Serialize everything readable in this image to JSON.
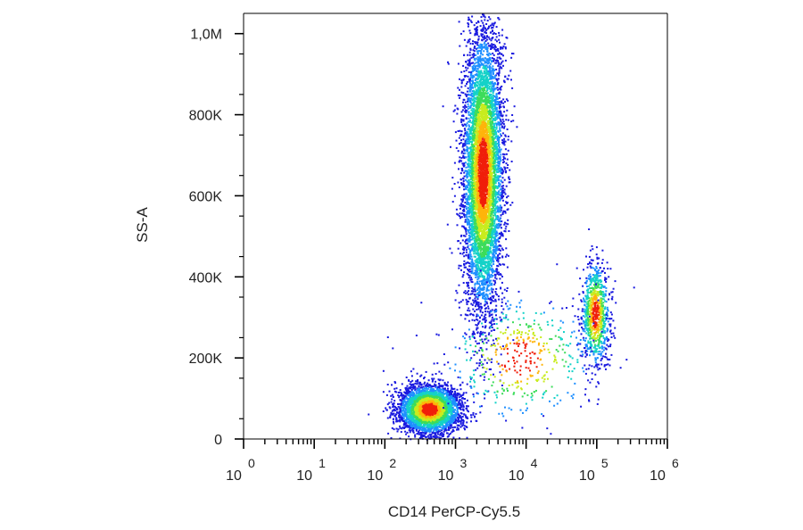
{
  "chart_data": {
    "type": "scatter",
    "subtype": "flow-cytometry-density-dot-plot",
    "xlabel": "CD14 PerCP-Cy5.5",
    "ylabel": "SS-A",
    "x_scale": "log",
    "xlim": [
      1,
      1000000
    ],
    "ylim": [
      0,
      1050000
    ],
    "x_tick_labels": [
      {
        "value": 1,
        "base": "10",
        "exp": "0"
      },
      {
        "value": 10,
        "base": "10",
        "exp": "1"
      },
      {
        "value": 100,
        "base": "10",
        "exp": "2"
      },
      {
        "value": 1000,
        "base": "10",
        "exp": "3"
      },
      {
        "value": 10000,
        "base": "10",
        "exp": "4"
      },
      {
        "value": 100000,
        "base": "10",
        "exp": "5"
      },
      {
        "value": 1000000,
        "base": "10",
        "exp": "6"
      }
    ],
    "y_tick_labels": [
      {
        "value": 0,
        "label": "0"
      },
      {
        "value": 200000,
        "label": "200K"
      },
      {
        "value": 400000,
        "label": "400K"
      },
      {
        "value": 600000,
        "label": "600K"
      },
      {
        "value": 800000,
        "label": "800K"
      },
      {
        "value": 1000000,
        "label": "1,0M"
      }
    ],
    "grid": false,
    "legend": "none",
    "color_scale": [
      "#1a1adf",
      "#1e8fff",
      "#14d2c8",
      "#3cdc5a",
      "#c8ec1e",
      "#ffb40a",
      "#f01e0a"
    ],
    "populations": [
      {
        "log10_x_center": 2.62,
        "y_center": 75000,
        "log10_x_sd": 0.22,
        "y_sd": 30000,
        "count": 3600
      },
      {
        "log10_x_center": 3.38,
        "y_center": 660000,
        "log10_x_sd": 0.14,
        "y_sd": 175000,
        "count": 6500
      },
      {
        "log10_x_center": 4.97,
        "y_center": 310000,
        "log10_x_sd": 0.1,
        "y_sd": 65000,
        "count": 900
      },
      {
        "log10_x_center": 3.9,
        "y_center": 200000,
        "log10_x_sd": 0.55,
        "y_sd": 80000,
        "count": 450
      }
    ]
  }
}
